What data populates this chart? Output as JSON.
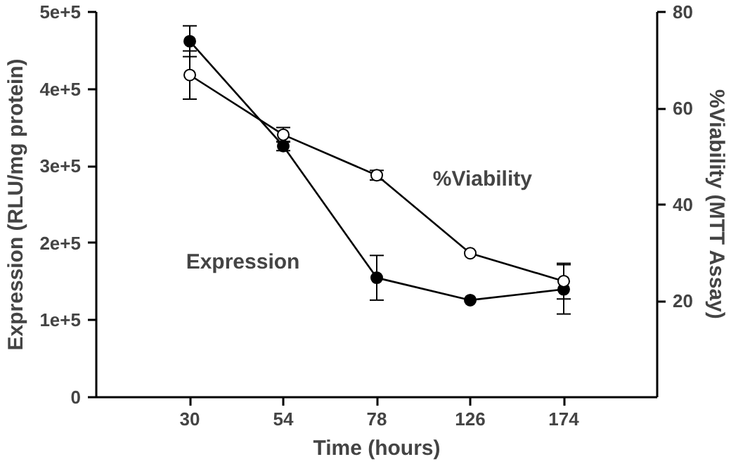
{
  "chart_data": {
    "type": "line",
    "xlabel": "Time (hours)",
    "ylabel": "Expression (RLU/mg protein)",
    "y2label": "%Viability (MTT Assay)",
    "categories": [
      "30",
      "54",
      "78",
      "126",
      "174"
    ],
    "series": [
      {
        "name": "Expression",
        "color": "#000000",
        "values": [
          462000,
          326000,
          155000,
          126000,
          140000
        ],
        "errors": [
          20000,
          6000,
          29000,
          null,
          32000
        ]
      },
      {
        "name": "%Viability",
        "color": "#000000",
        "axis": "y2",
        "values": [
          66.9,
          54.5,
          46.1,
          29.9,
          24.1
        ],
        "errors": [
          5,
          1.5,
          1,
          null,
          3.7
        ]
      }
    ],
    "ylim": [
      0,
      500000
    ],
    "yticks": [
      0,
      {
        "value": 100000,
        "label": "1e+5"
      },
      {
        "value": 200000,
        "label": "2e+5"
      },
      {
        "value": 300000,
        "label": "3e+5"
      },
      {
        "value": 400000,
        "label": "4e+5"
      },
      {
        "value": 500000,
        "label": "5e+5"
      }
    ],
    "y2lim": [
      0,
      80
    ],
    "y2ticks": [
      20,
      40,
      60,
      80
    ],
    "grid": false,
    "marker": "circle",
    "line_style": "solid"
  }
}
